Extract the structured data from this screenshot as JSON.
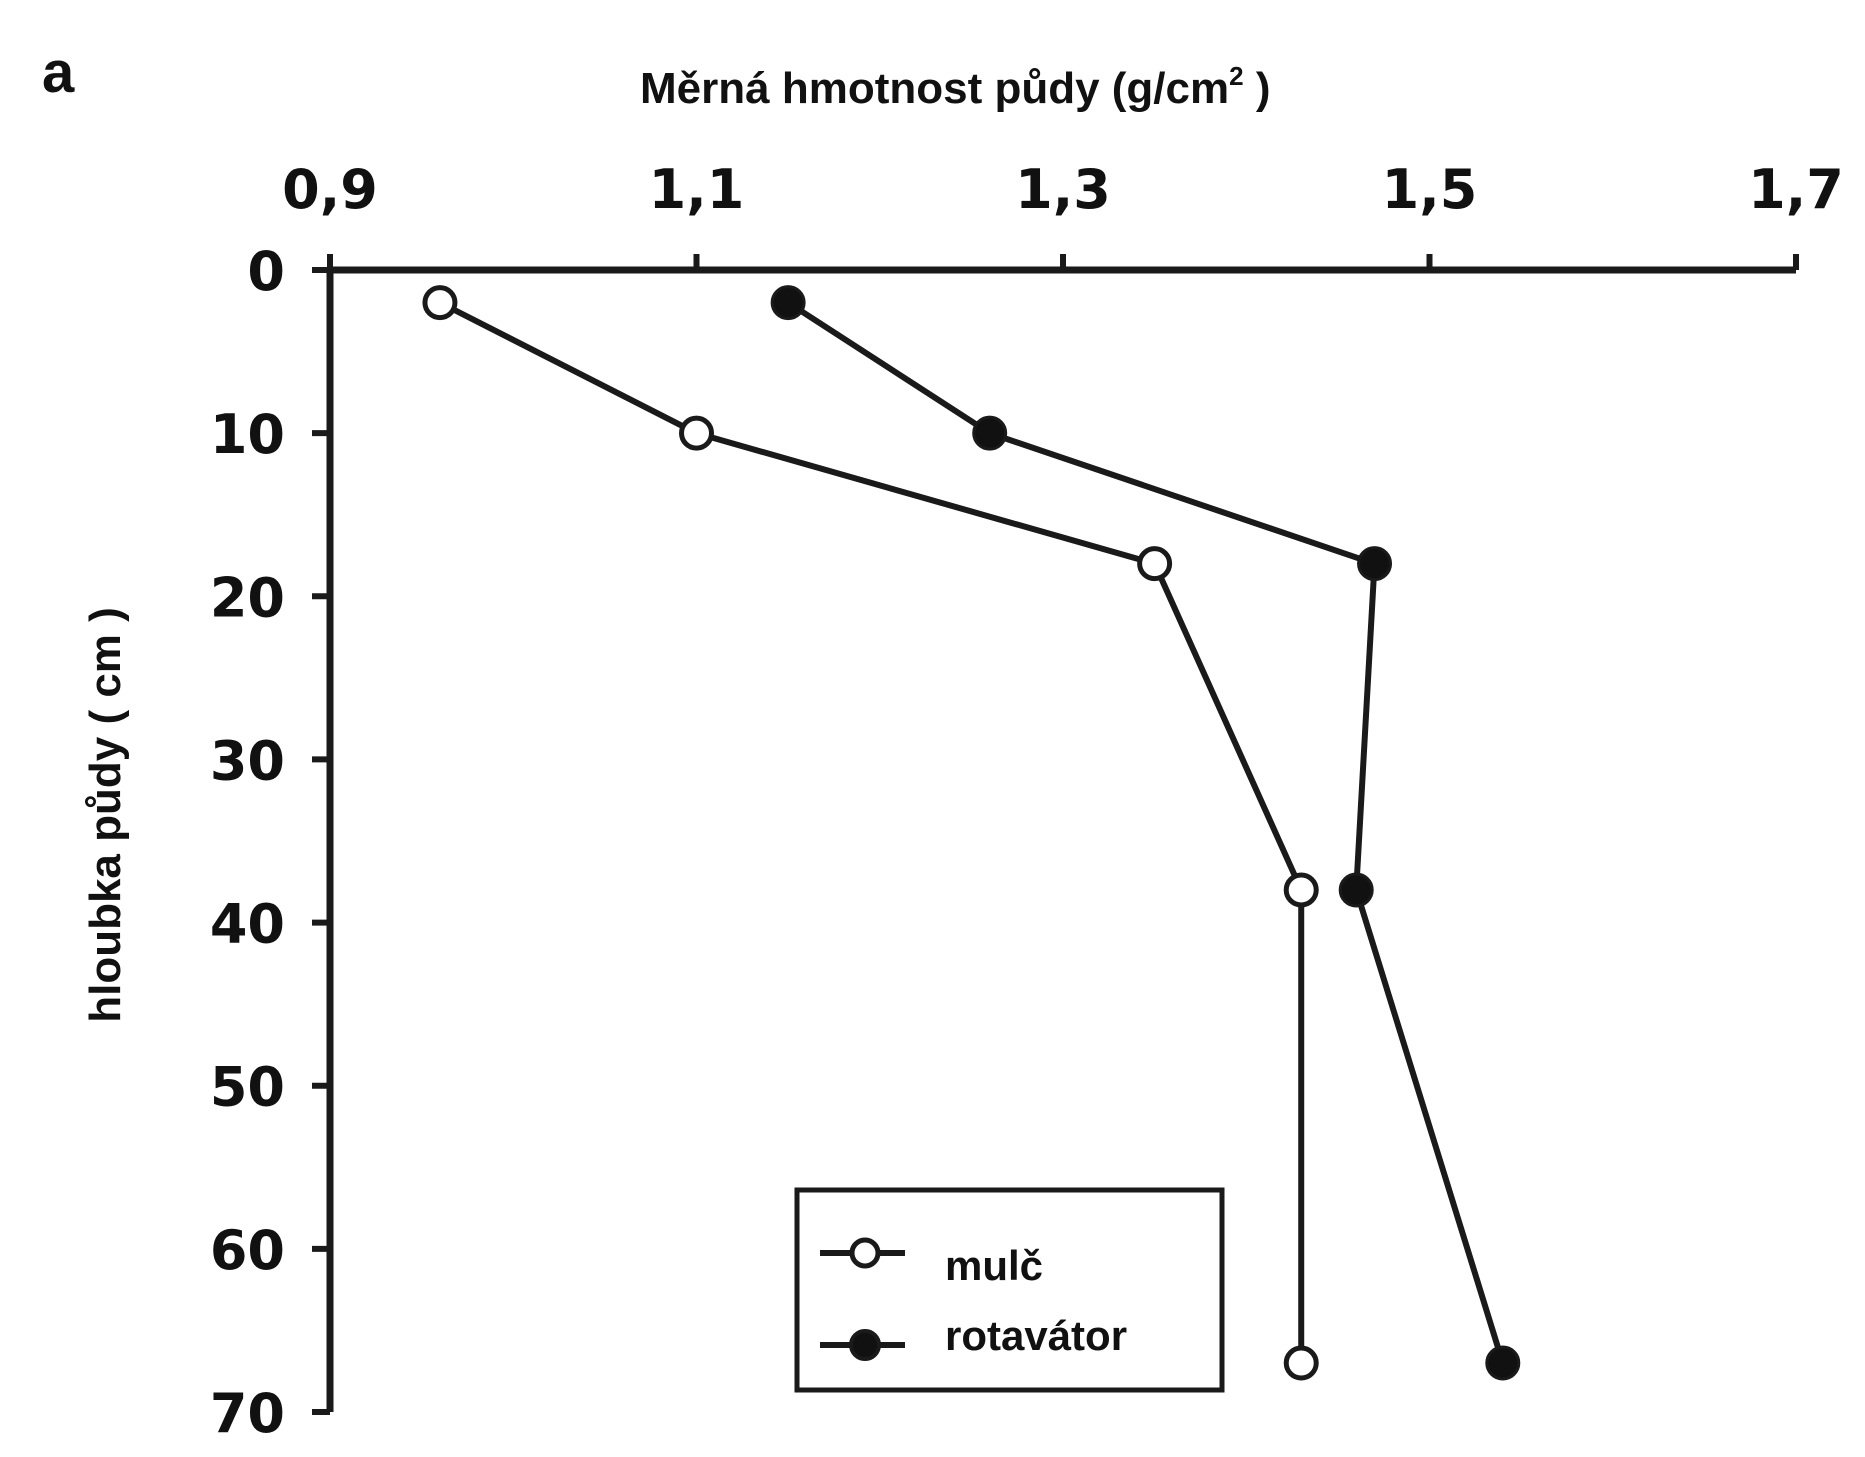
{
  "panel_label": "a",
  "chart_data": {
    "type": "line",
    "xlabel": "Měrná hmotnost půdy  (g/cm",
    "xlabel_sup": "2",
    "xlabel_close": " )",
    "ylabel": "hloubka půdy  ( cm )",
    "x_axis_position": "top",
    "y_axis_inverted": true,
    "xlim": [
      0.9,
      1.7
    ],
    "ylim": [
      0,
      70
    ],
    "x_ticks": [
      0.9,
      1.1,
      1.3,
      1.5,
      1.7
    ],
    "x_tick_labels": [
      "0,9",
      "1,1",
      "1,3",
      "1,5",
      "1,7"
    ],
    "y_ticks": [
      0,
      10,
      20,
      30,
      40,
      50,
      60,
      70
    ],
    "y_tick_labels": [
      "0",
      "10",
      "20",
      "30",
      "40",
      "50",
      "60",
      "70"
    ],
    "grid": false,
    "legend_position": "bottom-center",
    "series": [
      {
        "name": "mulč",
        "marker": "open-circle",
        "points": [
          {
            "x": 0.96,
            "y": 2
          },
          {
            "x": 1.1,
            "y": 10
          },
          {
            "x": 1.35,
            "y": 18
          },
          {
            "x": 1.43,
            "y": 38
          },
          {
            "x": 1.43,
            "y": 67
          }
        ]
      },
      {
        "name": "rotavátor",
        "marker": "filled-circle",
        "points": [
          {
            "x": 1.15,
            "y": 2
          },
          {
            "x": 1.26,
            "y": 10
          },
          {
            "x": 1.47,
            "y": 18
          },
          {
            "x": 1.46,
            "y": 38
          },
          {
            "x": 1.54,
            "y": 67
          }
        ]
      }
    ]
  },
  "colors": {
    "line": "#1a1a1a",
    "marker_fill_filled": "#111111",
    "marker_fill_open": "#ffffff"
  }
}
